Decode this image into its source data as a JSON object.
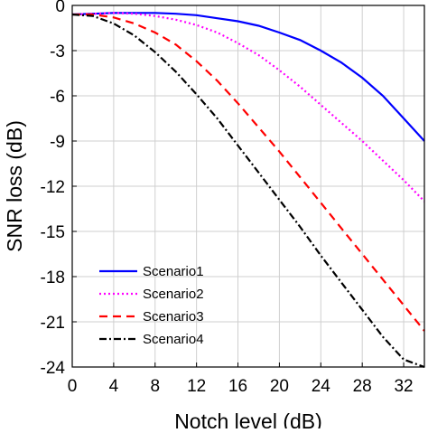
{
  "chart_data": {
    "type": "line",
    "xlabel": "Notch level (dB)",
    "ylabel": "SNR loss (dB)",
    "xlim": [
      0,
      34
    ],
    "ylim": [
      -24,
      0
    ],
    "xticks": [
      0,
      4,
      8,
      12,
      16,
      20,
      24,
      28,
      32
    ],
    "yticks": [
      0,
      -3,
      -6,
      -9,
      -12,
      -15,
      -18,
      -21,
      -24
    ],
    "xtick_labels": [
      "0",
      "4",
      "8",
      "12",
      "16",
      "20",
      "24",
      "28",
      "32"
    ],
    "ytick_labels": [
      "0",
      "-3",
      "-6",
      "-9",
      "-12",
      "-15",
      "-18",
      "-21",
      "-24"
    ],
    "grid": true,
    "legend_position": "bottom-left",
    "series": [
      {
        "name": "Scenario1",
        "color": "#0000ff",
        "style": "solid",
        "x": [
          0,
          2,
          4,
          6,
          8,
          10,
          12,
          14,
          16,
          18,
          20,
          22,
          24,
          26,
          28,
          30,
          32,
          34
        ],
        "y": [
          -0.6,
          -0.55,
          -0.5,
          -0.5,
          -0.5,
          -0.55,
          -0.65,
          -0.85,
          -1.05,
          -1.35,
          -1.8,
          -2.3,
          -3.0,
          -3.8,
          -4.8,
          -6.0,
          -7.5,
          -9.0
        ]
      },
      {
        "name": "Scenario2",
        "color": "#ff00ff",
        "style": "dotted",
        "x": [
          0,
          2,
          4,
          6,
          8,
          10,
          12,
          14,
          16,
          18,
          20,
          22,
          24,
          26,
          28,
          30,
          32,
          34
        ],
        "y": [
          -0.6,
          -0.55,
          -0.5,
          -0.55,
          -0.7,
          -0.95,
          -1.3,
          -1.8,
          -2.5,
          -3.3,
          -4.3,
          -5.4,
          -6.6,
          -7.8,
          -9.0,
          -10.3,
          -11.6,
          -13.0
        ]
      },
      {
        "name": "Scenario3",
        "color": "#ff0000",
        "style": "dashed",
        "x": [
          0,
          2,
          4,
          6,
          8,
          10,
          12,
          14,
          16,
          18,
          20,
          22,
          24,
          26,
          28,
          30,
          32,
          34
        ],
        "y": [
          -0.6,
          -0.6,
          -0.8,
          -1.2,
          -1.8,
          -2.6,
          -3.7,
          -5.0,
          -6.5,
          -8.1,
          -9.7,
          -11.4,
          -13.1,
          -14.8,
          -16.5,
          -18.2,
          -19.9,
          -21.6
        ]
      },
      {
        "name": "Scenario4",
        "color": "#000000",
        "style": "dashdot",
        "x": [
          0,
          2,
          4,
          6,
          8,
          10,
          12,
          14,
          16,
          18,
          20,
          22,
          24,
          26,
          28,
          30,
          32,
          34
        ],
        "y": [
          -0.6,
          -0.7,
          -1.2,
          -2.0,
          -3.1,
          -4.4,
          -5.9,
          -7.5,
          -9.3,
          -11.1,
          -12.9,
          -14.7,
          -16.6,
          -18.4,
          -20.2,
          -22.0,
          -23.5,
          -24.0
        ]
      }
    ]
  }
}
